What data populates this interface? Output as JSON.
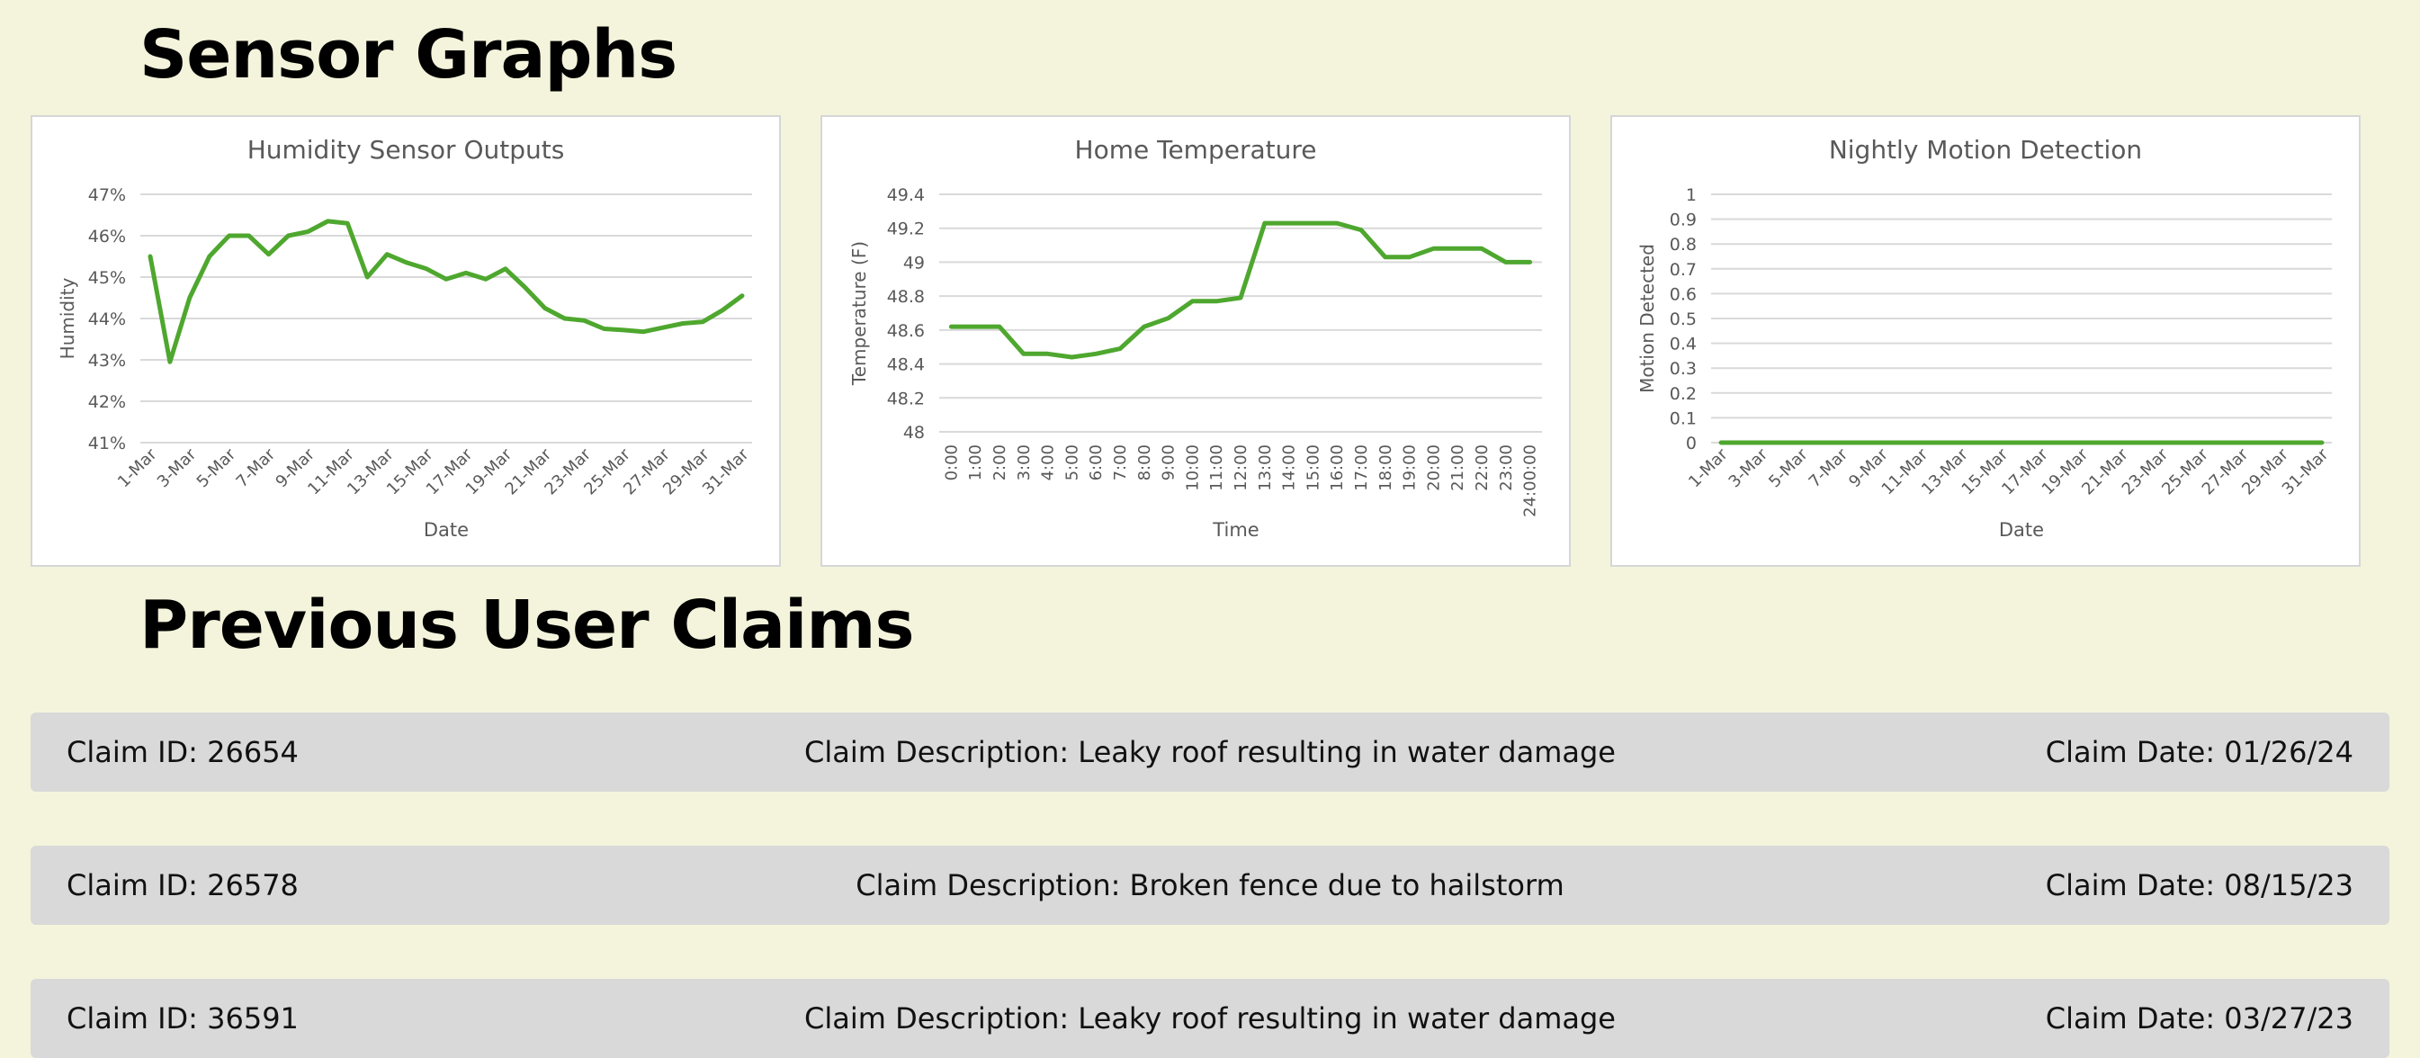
{
  "page": {
    "sensor_title": "Sensor Graphs",
    "claims_title": "Previous User Claims",
    "background_color": "#f4f4dc",
    "line_color": "#4ea72e"
  },
  "claims": [
    {
      "id_text": "Claim ID: 26654",
      "description_text": "Claim Description: Leaky roof resulting in water damage",
      "date_text": "Claim Date: 01/26/24"
    },
    {
      "id_text": "Claim ID: 26578",
      "description_text": "Claim Description: Broken fence due to hailstorm",
      "date_text": "Claim Date: 08/15/23"
    },
    {
      "id_text": "Claim ID: 36591",
      "description_text": "Claim Description: Leaky roof resulting in water damage",
      "date_text": "Claim Date: 03/27/23"
    }
  ],
  "chart_data": [
    {
      "type": "line",
      "title": "Humidity Sensor Outputs",
      "xlabel": "Date",
      "ylabel": "Humidity",
      "ylim": [
        41,
        47
      ],
      "y_ticks": [
        "41%",
        "42%",
        "43%",
        "44%",
        "45%",
        "46%",
        "47%"
      ],
      "x_ticks": [
        "1-Mar",
        "3-Mar",
        "5-Mar",
        "7-Mar",
        "9-Mar",
        "11-Mar",
        "13-Mar",
        "15-Mar",
        "17-Mar",
        "19-Mar",
        "21-Mar",
        "23-Mar",
        "25-Mar",
        "27-Mar",
        "29-Mar",
        "31-Mar"
      ],
      "grid": true,
      "series": [
        {
          "values": [
            45.5,
            42.95,
            44.5,
            45.5,
            46.0,
            46.0,
            45.55,
            46.0,
            46.1,
            46.35,
            46.3,
            45.0,
            45.55,
            45.35,
            45.2,
            44.95,
            45.1,
            44.95,
            45.2,
            44.75,
            44.25,
            44.0,
            43.95,
            43.75,
            43.72,
            43.68,
            43.78,
            43.88,
            43.92,
            44.2,
            44.55
          ]
        }
      ]
    },
    {
      "type": "line",
      "title": "Home Temperature",
      "xlabel": "Time",
      "ylabel": "Temperature (F)",
      "ylim": [
        48,
        49.4
      ],
      "y_ticks": [
        "48",
        "48.2",
        "48.4",
        "48.6",
        "48.8",
        "49",
        "49.2",
        "49.4"
      ],
      "x_ticks": [
        "0:00",
        "1:00",
        "2:00",
        "3:00",
        "4:00",
        "5:00",
        "6:00",
        "7:00",
        "8:00",
        "9:00",
        "10:00",
        "11:00",
        "12:00",
        "13:00",
        "14:00",
        "15:00",
        "16:00",
        "17:00",
        "18:00",
        "19:00",
        "20:00",
        "21:00",
        "22:00",
        "23:00",
        "24:00:00"
      ],
      "grid": true,
      "series": [
        {
          "values": [
            48.62,
            48.62,
            48.62,
            48.46,
            48.46,
            48.44,
            48.46,
            48.49,
            48.62,
            48.67,
            48.77,
            48.77,
            48.79,
            49.23,
            49.23,
            49.23,
            49.23,
            49.19,
            49.03,
            49.03,
            49.08,
            49.08,
            49.08,
            49.0,
            49.0
          ]
        }
      ]
    },
    {
      "type": "line",
      "title": "Nightly Motion  Detection",
      "xlabel": "Date",
      "ylabel": "Motion Detected",
      "ylim": [
        0,
        1
      ],
      "y_ticks": [
        "0",
        "0.1",
        "0.2",
        "0.3",
        "0.4",
        "0.5",
        "0.6",
        "0.7",
        "0.8",
        "0.9",
        "1"
      ],
      "x_ticks": [
        "1-Mar",
        "3-Mar",
        "5-Mar",
        "7-Mar",
        "9-Mar",
        "11-Mar",
        "13-Mar",
        "15-Mar",
        "17-Mar",
        "19-Mar",
        "21-Mar",
        "23-Mar",
        "25-Mar",
        "27-Mar",
        "29-Mar",
        "31-Mar"
      ],
      "grid": true,
      "series": [
        {
          "values": [
            0,
            0,
            0,
            0,
            0,
            0,
            0,
            0,
            0,
            0,
            0,
            0,
            0,
            0,
            0,
            0,
            0,
            0,
            0,
            0,
            0,
            0,
            0,
            0,
            0,
            0,
            0,
            0,
            0,
            0,
            0
          ]
        }
      ]
    }
  ]
}
